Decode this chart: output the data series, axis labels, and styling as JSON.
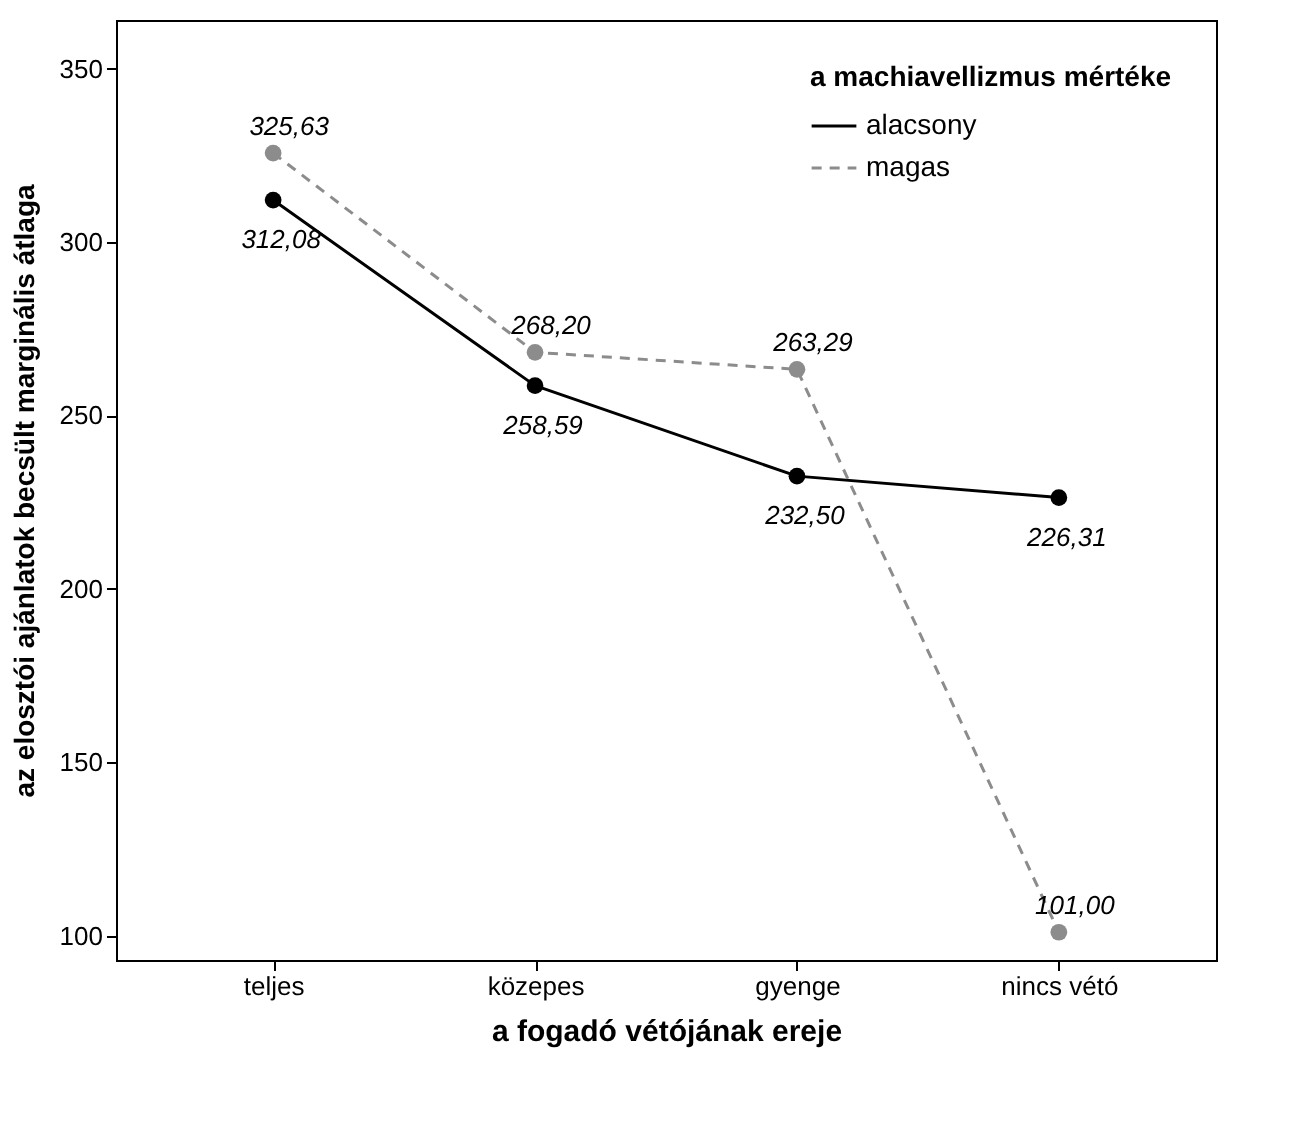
{
  "chart_data": {
    "type": "line",
    "xlabel": "a fogadó vétójának ereje",
    "ylabel": "az elosztói ajánlatok becsült marginális átlaga",
    "legend_title": "a machiavellizmus mértéke",
    "categories": [
      "teljes",
      "közepes",
      "gyenge",
      "nincs vétó"
    ],
    "series": [
      {
        "name": "alacsony",
        "color": "#000000",
        "line_style": "solid",
        "values": [
          312.08,
          258.59,
          232.5,
          226.31
        ],
        "value_labels": [
          "312,08",
          "258,59",
          "232,50",
          "226,31"
        ]
      },
      {
        "name": "magas",
        "color": "#8c8c8c",
        "line_style": "dashed",
        "values": [
          325.63,
          268.2,
          263.29,
          101.0
        ],
        "value_labels": [
          "325,63",
          "268,20",
          "263,29",
          "101,00"
        ]
      }
    ],
    "ylim": [
      93,
      364
    ],
    "yticks": [
      100,
      150,
      200,
      250,
      300,
      350
    ],
    "grid": false,
    "legend": "top right",
    "marker": "circle"
  }
}
